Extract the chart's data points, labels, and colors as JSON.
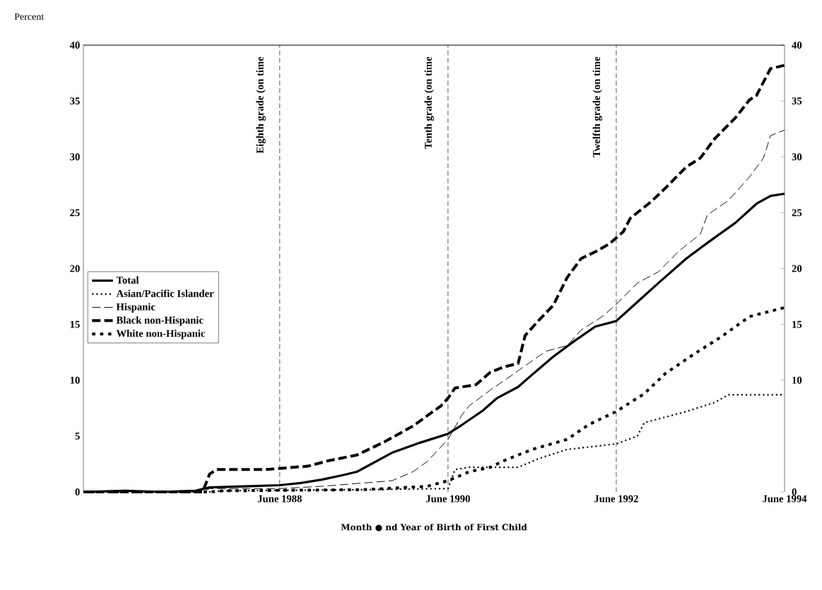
{
  "chart_data": {
    "type": "line",
    "xlabel": "Month ● nd Year of Birth of First Child",
    "ylabel": "Percent",
    "xlim": [
      "1986-02",
      "1994-06"
    ],
    "xticks": [
      {
        "value": "1988-06",
        "label": "June 1988"
      },
      {
        "value": "1990-06",
        "label": "June 1990"
      },
      {
        "value": "1992-06",
        "label": "June 1992"
      },
      {
        "value": "1994-06",
        "label": "June 1994"
      }
    ],
    "ylim": [
      0,
      40
    ],
    "yticks": [
      0,
      5,
      10,
      15,
      20,
      25,
      30,
      35,
      40
    ],
    "y2lim": [
      0,
      40
    ],
    "y2ticks": [
      0,
      10,
      15,
      20,
      25,
      30,
      35,
      40
    ],
    "legend": "left",
    "ref_lines": [
      {
        "axis": "x",
        "value": "1988-06",
        "label": "Eighth grade (on time",
        "line_style": "dashed"
      },
      {
        "axis": "x",
        "value": "1990-06",
        "label": "Tenth grade (on time",
        "line_style": "dashed"
      },
      {
        "axis": "x",
        "value": "1992-06",
        "label": "Twelfth grade (on time",
        "line_style": "dashed"
      }
    ],
    "series": [
      {
        "name": "Total",
        "color": "#000000",
        "line_style": "solid",
        "x": [
          "1986-02",
          "1986-08",
          "1987-01",
          "1987-06",
          "1987-08",
          "1988-01",
          "1988-06",
          "1988-09",
          "1988-12",
          "1989-03",
          "1989-05",
          "1989-10",
          "1990-02",
          "1990-05",
          "1990-06",
          "1990-08",
          "1990-11",
          "1991-01",
          "1991-04",
          "1991-06",
          "1991-09",
          "1991-12",
          "1992-03",
          "1992-06",
          "1992-09",
          "1992-12",
          "1993-04",
          "1993-07",
          "1993-11",
          "1994-02",
          "1994-04",
          "1994-06"
        ],
        "values": [
          0,
          0.1,
          0,
          0.1,
          0.4,
          0.5,
          0.6,
          0.8,
          1.1,
          1.5,
          1.8,
          3.5,
          4.4,
          5.0,
          5.2,
          6.0,
          7.3,
          8.4,
          9.4,
          10.5,
          12.1,
          13.5,
          14.8,
          15.3,
          17.0,
          18.7,
          20.9,
          22.3,
          24.1,
          25.8,
          26.5,
          26.7
        ]
      },
      {
        "name": "Asian/Pacific Islander",
        "color": "#000000",
        "line_style": "dotted",
        "x": [
          "1986-02",
          "1987-08",
          "1987-10",
          "1989-06",
          "1990-06",
          "1990-07",
          "1990-09",
          "1991-04",
          "1991-07",
          "1991-11",
          "1992-06",
          "1992-09",
          "1992-10",
          "1993-04",
          "1993-08",
          "1993-10",
          "1994-06"
        ],
        "values": [
          0,
          0,
          0.1,
          0.2,
          0.3,
          2.0,
          2.2,
          2.2,
          3.0,
          3.8,
          4.3,
          5.0,
          6.2,
          7.2,
          8.0,
          8.7,
          8.7
        ]
      },
      {
        "name": "Hispanic",
        "color": "#000000",
        "line_style": "dashed",
        "x": [
          "1986-02",
          "1987-07",
          "1987-08",
          "1988-06",
          "1988-12",
          "1989-06",
          "1989-10",
          "1990-01",
          "1990-03",
          "1990-06",
          "1990-08",
          "1990-09",
          "1990-12",
          "1991-03",
          "1991-05",
          "1991-08",
          "1991-11",
          "1992-01",
          "1992-04",
          "1992-06",
          "1992-09",
          "1992-12",
          "1993-03",
          "1993-06",
          "1993-07",
          "1993-10",
          "1994-01",
          "1994-03",
          "1994-04",
          "1994-06"
        ],
        "values": [
          0,
          0,
          0.3,
          0.3,
          0.5,
          0.8,
          1.0,
          1.8,
          2.7,
          4.7,
          6.9,
          7.7,
          9.1,
          10.4,
          11.3,
          12.6,
          13.1,
          14.5,
          15.7,
          16.8,
          18.7,
          19.7,
          21.6,
          23.1,
          24.8,
          26.1,
          28.2,
          29.9,
          31.9,
          32.4
        ]
      },
      {
        "name": "Black **non-Hispanic**",
        "color": "#000000",
        "line_style": "dashed",
        "x": [
          "1986-02",
          "1987-07",
          "1987-08",
          "1987-09",
          "1988-04",
          "1988-06",
          "1988-10",
          "1989-01",
          "1989-05",
          "1989-09",
          "1990-01",
          "1990-05",
          "1990-06",
          "1990-07",
          "1990-10",
          "1990-12",
          "1991-02",
          "1991-04",
          "1991-05",
          "1991-07",
          "1991-09",
          "1991-11",
          "1992-01",
          "1992-03",
          "1992-05",
          "1992-07",
          "1992-08",
          "1992-11",
          "1993-01",
          "1993-04",
          "1993-06",
          "1993-08",
          "1993-11",
          "1994-01",
          "1994-02",
          "1994-04",
          "1994-06"
        ],
        "values": [
          0,
          0,
          1.6,
          2.0,
          2.0,
          2.1,
          2.3,
          2.8,
          3.3,
          4.5,
          5.9,
          7.7,
          8.4,
          9.3,
          9.6,
          10.7,
          11.2,
          11.5,
          14.0,
          15.4,
          16.7,
          19.2,
          20.9,
          21.5,
          22.2,
          23.3,
          24.5,
          26.0,
          27.2,
          29.1,
          29.9,
          31.6,
          33.5,
          35.1,
          35.5,
          37.9,
          38.2
        ]
      },
      {
        "name": "White non-Hispanic",
        "color": "#000000",
        "line_style": "dashed",
        "x": [
          "1986-02",
          "1987-08",
          "1987-10",
          "1989-06",
          "1990-03",
          "1990-06",
          "1990-09",
          "1990-12",
          "1991-02",
          "1991-06",
          "1991-11",
          "1992-02",
          "1992-06",
          "1992-10",
          "1993-01",
          "1993-05",
          "1993-09",
          "1994-01",
          "1994-06"
        ],
        "values": [
          0,
          0,
          0.1,
          0.2,
          0.5,
          1.0,
          1.8,
          2.2,
          2.8,
          3.8,
          4.7,
          6.0,
          7.2,
          8.8,
          10.6,
          12.3,
          13.9,
          15.7,
          16.5
        ]
      }
    ]
  }
}
